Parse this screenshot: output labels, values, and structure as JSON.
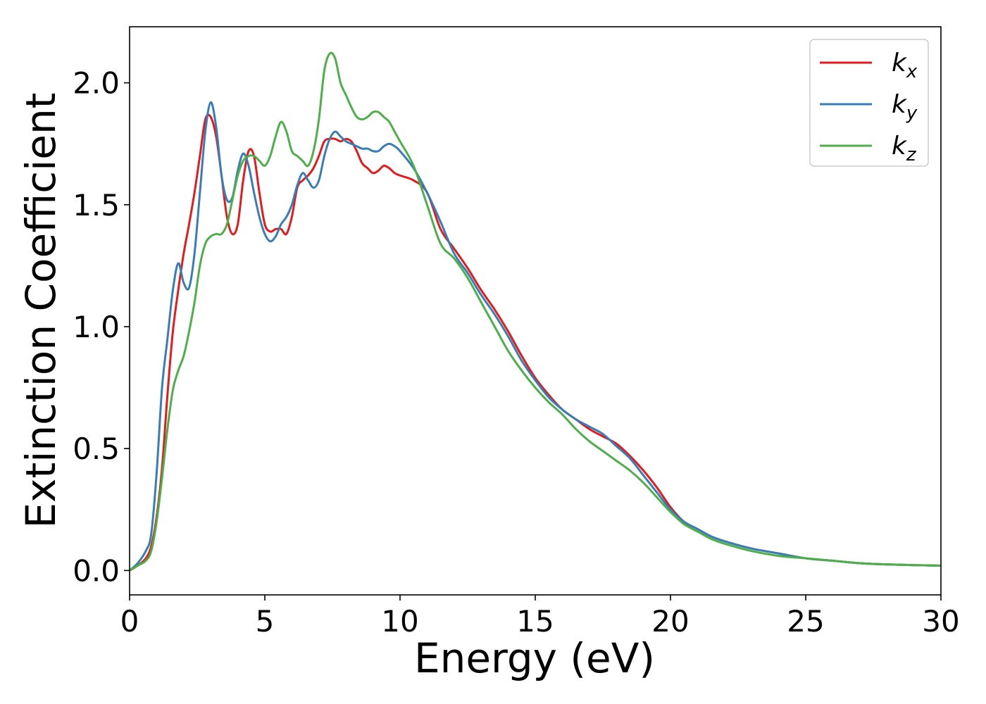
{
  "chart_data": {
    "type": "line",
    "title": "",
    "xlabel": "Energy (eV)",
    "ylabel": "Extinction Coefficient",
    "xlim": [
      0,
      30
    ],
    "ylim": [
      -0.1,
      2.23
    ],
    "xticks": [
      0,
      5,
      10,
      15,
      20,
      25,
      30
    ],
    "xtick_labels": [
      "0",
      "5",
      "10",
      "15",
      "20",
      "25",
      "30"
    ],
    "yticks": [
      0.0,
      0.5,
      1.0,
      1.5,
      2.0
    ],
    "ytick_labels": [
      "0.0",
      "0.5",
      "1.0",
      "1.5",
      "2.0"
    ],
    "grid": false,
    "legend_position": "top-right",
    "series": [
      {
        "name": "k_x",
        "legend_base": "k",
        "legend_sub": "x",
        "color": "#e41a1c",
        "x": [
          0,
          0.3,
          0.6,
          0.8,
          1.0,
          1.2,
          1.4,
          1.6,
          1.8,
          2.0,
          2.2,
          2.4,
          2.6,
          2.8,
          3.0,
          3.2,
          3.4,
          3.6,
          3.8,
          4.0,
          4.2,
          4.4,
          4.6,
          4.8,
          5.0,
          5.2,
          5.4,
          5.6,
          5.8,
          6.0,
          6.2,
          6.4,
          6.6,
          6.8,
          7.0,
          7.2,
          7.4,
          7.6,
          7.8,
          8.0,
          8.2,
          8.4,
          8.6,
          8.8,
          9.0,
          9.2,
          9.4,
          9.6,
          9.8,
          10.0,
          10.5,
          11.0,
          11.5,
          12.0,
          12.5,
          13.0,
          13.5,
          14.0,
          14.5,
          15.0,
          15.5,
          16.0,
          16.5,
          17.0,
          17.5,
          18.0,
          18.5,
          19.0,
          19.5,
          20.0,
          20.5,
          21.0,
          21.5,
          22.0,
          23.0,
          24.0,
          25.0,
          26.0,
          27.0,
          28.0,
          29.0,
          30.0
        ],
        "y": [
          0.0,
          0.02,
          0.05,
          0.1,
          0.22,
          0.42,
          0.72,
          0.98,
          1.15,
          1.3,
          1.42,
          1.55,
          1.7,
          1.85,
          1.86,
          1.78,
          1.62,
          1.45,
          1.38,
          1.42,
          1.6,
          1.72,
          1.7,
          1.55,
          1.42,
          1.39,
          1.4,
          1.4,
          1.38,
          1.45,
          1.57,
          1.6,
          1.62,
          1.65,
          1.7,
          1.76,
          1.77,
          1.77,
          1.76,
          1.77,
          1.76,
          1.72,
          1.67,
          1.65,
          1.63,
          1.64,
          1.66,
          1.65,
          1.63,
          1.62,
          1.6,
          1.55,
          1.4,
          1.32,
          1.24,
          1.15,
          1.07,
          0.98,
          0.88,
          0.79,
          0.72,
          0.66,
          0.62,
          0.58,
          0.55,
          0.52,
          0.47,
          0.41,
          0.34,
          0.26,
          0.2,
          0.17,
          0.14,
          0.12,
          0.09,
          0.07,
          0.05,
          0.04,
          0.03,
          0.025,
          0.022,
          0.02
        ]
      },
      {
        "name": "k_y",
        "legend_base": "k",
        "legend_sub": "y",
        "color": "#377eb8",
        "x": [
          0,
          0.3,
          0.6,
          0.8,
          1.0,
          1.2,
          1.4,
          1.6,
          1.8,
          2.0,
          2.2,
          2.4,
          2.6,
          2.8,
          3.0,
          3.2,
          3.4,
          3.6,
          3.8,
          4.0,
          4.2,
          4.4,
          4.6,
          4.8,
          5.0,
          5.2,
          5.4,
          5.6,
          5.8,
          6.0,
          6.2,
          6.4,
          6.6,
          6.8,
          7.0,
          7.2,
          7.4,
          7.6,
          7.8,
          8.0,
          8.2,
          8.4,
          8.6,
          8.8,
          9.0,
          9.2,
          9.4,
          9.6,
          9.8,
          10.0,
          10.5,
          11.0,
          11.5,
          12.0,
          12.5,
          13.0,
          13.5,
          14.0,
          14.5,
          15.0,
          15.5,
          16.0,
          16.5,
          17.0,
          17.5,
          18.0,
          18.5,
          19.0,
          19.5,
          20.0,
          20.5,
          21.0,
          21.5,
          22.0,
          23.0,
          24.0,
          25.0,
          26.0,
          27.0,
          28.0,
          29.0,
          30.0
        ],
        "y": [
          0.0,
          0.03,
          0.08,
          0.15,
          0.4,
          0.75,
          0.95,
          1.15,
          1.26,
          1.18,
          1.16,
          1.3,
          1.55,
          1.8,
          1.92,
          1.82,
          1.62,
          1.52,
          1.53,
          1.64,
          1.71,
          1.66,
          1.55,
          1.45,
          1.38,
          1.35,
          1.37,
          1.42,
          1.45,
          1.5,
          1.58,
          1.63,
          1.6,
          1.57,
          1.6,
          1.7,
          1.77,
          1.8,
          1.78,
          1.76,
          1.75,
          1.74,
          1.73,
          1.73,
          1.72,
          1.72,
          1.74,
          1.75,
          1.74,
          1.72,
          1.65,
          1.55,
          1.43,
          1.3,
          1.22,
          1.13,
          1.05,
          0.96,
          0.86,
          0.78,
          0.71,
          0.66,
          0.62,
          0.59,
          0.56,
          0.51,
          0.46,
          0.39,
          0.32,
          0.25,
          0.2,
          0.17,
          0.14,
          0.12,
          0.09,
          0.07,
          0.05,
          0.04,
          0.03,
          0.025,
          0.022,
          0.02
        ]
      },
      {
        "name": "k_z",
        "legend_base": "k",
        "legend_sub": "z",
        "color": "#4daf4a",
        "x": [
          0,
          0.3,
          0.6,
          0.8,
          1.0,
          1.2,
          1.4,
          1.6,
          1.8,
          2.0,
          2.2,
          2.4,
          2.6,
          2.8,
          3.0,
          3.2,
          3.4,
          3.6,
          3.8,
          4.0,
          4.2,
          4.4,
          4.6,
          4.8,
          5.0,
          5.2,
          5.4,
          5.6,
          5.8,
          6.0,
          6.2,
          6.4,
          6.6,
          6.8,
          7.0,
          7.2,
          7.4,
          7.6,
          7.8,
          8.0,
          8.2,
          8.4,
          8.6,
          8.8,
          9.0,
          9.2,
          9.4,
          9.6,
          9.8,
          10.0,
          10.5,
          11.0,
          11.5,
          12.0,
          12.5,
          13.0,
          13.5,
          14.0,
          14.5,
          15.0,
          15.5,
          16.0,
          16.5,
          17.0,
          17.5,
          18.0,
          18.5,
          19.0,
          19.5,
          20.0,
          20.5,
          21.0,
          21.5,
          22.0,
          23.0,
          24.0,
          25.0,
          26.0,
          27.0,
          28.0,
          29.0,
          30.0
        ],
        "y": [
          0.0,
          0.02,
          0.04,
          0.08,
          0.2,
          0.38,
          0.58,
          0.74,
          0.82,
          0.88,
          0.98,
          1.1,
          1.25,
          1.34,
          1.37,
          1.38,
          1.38,
          1.42,
          1.52,
          1.62,
          1.68,
          1.7,
          1.7,
          1.68,
          1.66,
          1.7,
          1.78,
          1.84,
          1.8,
          1.72,
          1.7,
          1.68,
          1.66,
          1.72,
          1.85,
          2.05,
          2.12,
          2.1,
          2.0,
          1.95,
          1.9,
          1.86,
          1.85,
          1.86,
          1.88,
          1.88,
          1.86,
          1.84,
          1.8,
          1.76,
          1.66,
          1.5,
          1.34,
          1.28,
          1.2,
          1.1,
          1.0,
          0.9,
          0.82,
          0.75,
          0.69,
          0.64,
          0.58,
          0.53,
          0.49,
          0.45,
          0.41,
          0.36,
          0.3,
          0.24,
          0.19,
          0.16,
          0.13,
          0.11,
          0.08,
          0.06,
          0.05,
          0.04,
          0.03,
          0.025,
          0.022,
          0.02
        ]
      }
    ]
  }
}
